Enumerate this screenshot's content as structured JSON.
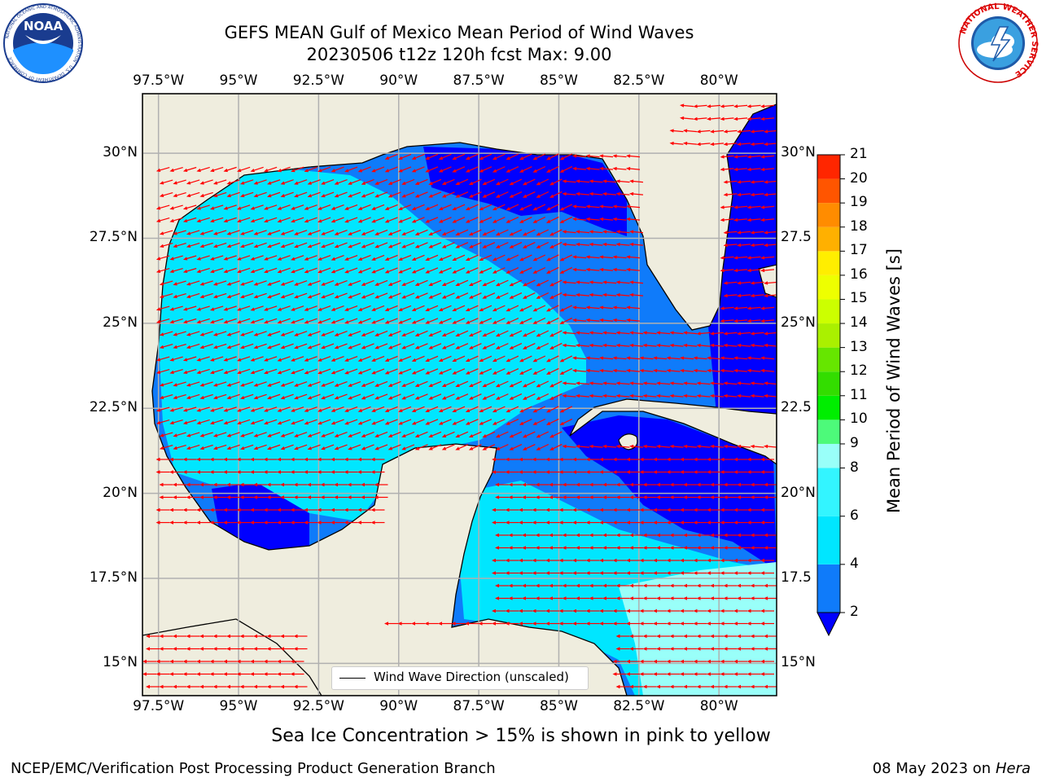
{
  "header": {
    "title_line1": "GEFS MEAN Gulf of Mexico Mean Period of Wind Waves",
    "title_line2": "20230506 t12z 120h fcst   Max: 9.00"
  },
  "logos": {
    "noaa_text": "NOAA",
    "noaa_ring": "NATIONAL OCEANIC AND ATMOSPHERIC ADMINISTRATION · U.S. DEPARTMENT OF COMMERCE",
    "nws_ring": "NATIONAL WEATHER SERVICE"
  },
  "map": {
    "lon_ticks": [
      "97.5°W",
      "95°W",
      "92.5°W",
      "90°W",
      "87.5°W",
      "85°W",
      "82.5°W",
      "80°W"
    ],
    "lat_ticks": [
      "30°N",
      "27.5°N",
      "25°N",
      "22.5°N",
      "20°N",
      "17.5°N",
      "15°N"
    ],
    "lat_ticks_right": [
      "30°N",
      "27.5",
      "25°N",
      "22.5",
      "20°N",
      "17.5",
      "15°N"
    ],
    "lon_range": [
      -98,
      -78.2
    ],
    "lat_range": [
      14.05,
      31.75
    ],
    "legend_label": "Wind Wave Direction (unscaled)"
  },
  "colorbar": {
    "label": "Mean Period of Wind Waves [s]",
    "levels": [
      2,
      4,
      6,
      8,
      9,
      10,
      11,
      12,
      13,
      14,
      15,
      16,
      17,
      18,
      19,
      20,
      21
    ],
    "colors": [
      "#0f7bfa",
      "#00e6ff",
      "#33f5ff",
      "#99fff9",
      "#4dfa7a",
      "#00ee00",
      "#33dd00",
      "#66e600",
      "#aaf000",
      "#ccff00",
      "#eeff00",
      "#ffee00",
      "#ffb000",
      "#ff8c00",
      "#ff5500",
      "#ff2600",
      "#ff0000"
    ],
    "under_color": "#0000ff"
  },
  "caption": "Sea Ice Concentration > 15% is shown in pink to yellow",
  "footer": {
    "left": "NCEP/EMC/Verification Post Processing Product Generation Branch",
    "right_date": "08 May 2023 on",
    "right_host": "Hera"
  }
}
